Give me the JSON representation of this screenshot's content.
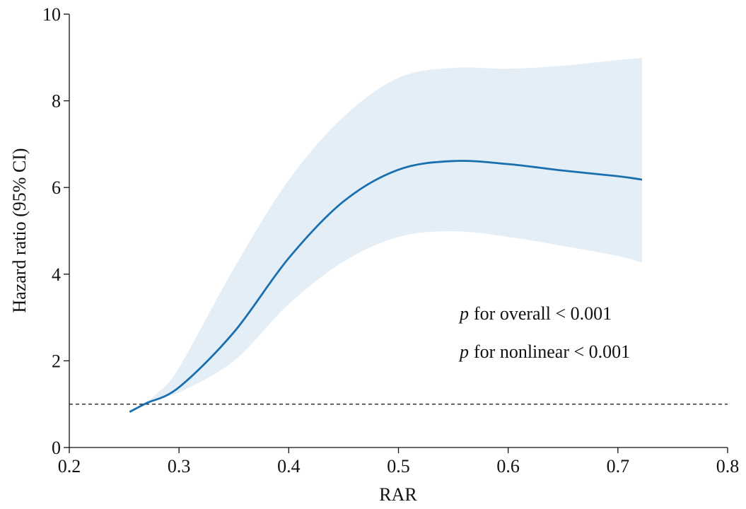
{
  "chart_data": {
    "type": "line",
    "x_label": "RAR",
    "y_label": "Hazard ratio (95% CI)",
    "xlim": [
      0.2,
      0.8
    ],
    "xticks": [
      0.2,
      0.3,
      0.4,
      0.5,
      0.6,
      0.7,
      0.8
    ],
    "ylim": [
      0,
      10
    ],
    "yticks": [
      0,
      2,
      4,
      6,
      8,
      10
    ],
    "x": [
      0.255,
      0.27,
      0.3,
      0.35,
      0.4,
      0.45,
      0.5,
      0.55,
      0.6,
      0.65,
      0.7,
      0.722
    ],
    "series": [
      {
        "color": "#1a6faf",
        "values": [
          0.82,
          1.02,
          1.39,
          2.66,
          4.37,
          5.68,
          6.41,
          6.61,
          6.54,
          6.39,
          6.26,
          6.18
        ]
      }
    ],
    "band": {
      "color": "#e3eef7",
      "x": [
        0.27,
        0.28,
        0.3,
        0.35,
        0.4,
        0.45,
        0.5,
        0.55,
        0.6,
        0.65,
        0.7,
        0.722
      ],
      "upper": [
        1.05,
        1.25,
        1.84,
        4.13,
        6.17,
        7.63,
        8.53,
        8.76,
        8.74,
        8.81,
        8.94,
        8.99
      ],
      "lower": [
        1.0,
        1.15,
        1.27,
        2.0,
        3.31,
        4.29,
        4.86,
        4.99,
        4.86,
        4.65,
        4.42,
        4.26
      ]
    },
    "reference_line": 1,
    "annotations": [
      {
        "italic": "p",
        "text": "for overall < 0.001"
      },
      {
        "italic": "p",
        "text": "for nonlinear < 0.001"
      }
    ]
  }
}
